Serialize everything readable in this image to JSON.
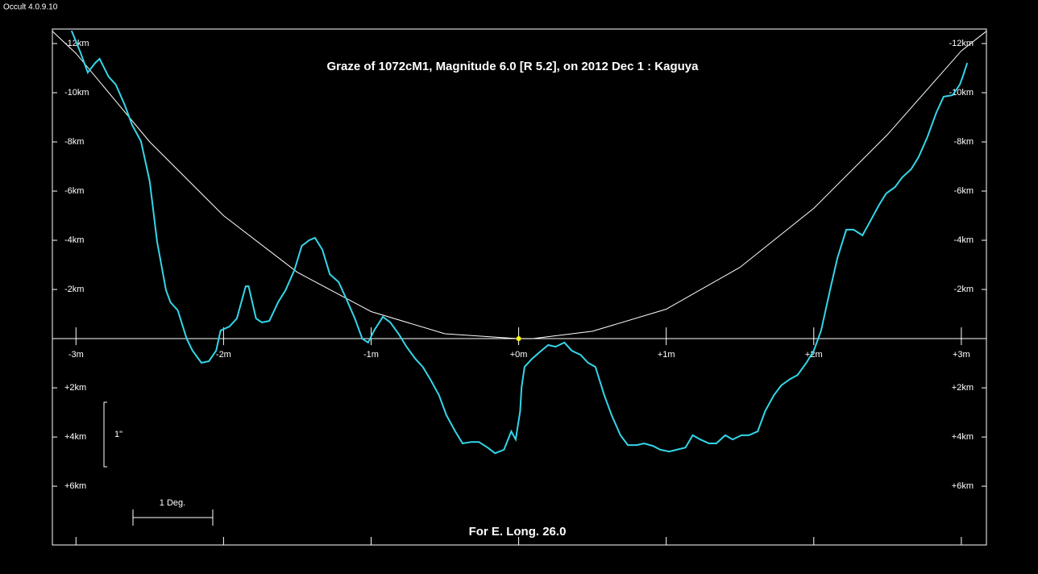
{
  "app_label": "Occult 4.0.9.10",
  "chart_data": {
    "type": "line",
    "title": "Graze of  1072cM1,  Magnitude 6.0 [R 5.2],  on 2012 Dec  1  :  Kaguya",
    "footer": "For E. Long. 26.0",
    "scale_bars": {
      "vertical": "1\"",
      "horizontal": "1 Deg."
    },
    "xlim": [
      -3.16,
      3.17
    ],
    "ylim": [
      -12.59,
      8.39
    ],
    "y_inverted": true,
    "xticks": [
      {
        "value": -3,
        "label": "-3m"
      },
      {
        "value": -2,
        "label": "-2m"
      },
      {
        "value": -1,
        "label": "-1m"
      },
      {
        "value": 0,
        "label": "+0m"
      },
      {
        "value": 1,
        "label": "+1m"
      },
      {
        "value": 2,
        "label": "+2m"
      },
      {
        "value": 3,
        "label": "+3m"
      }
    ],
    "yticks": [
      {
        "value": -12,
        "label": "-12km"
      },
      {
        "value": -10,
        "label": "-10km"
      },
      {
        "value": -8,
        "label": "-8km"
      },
      {
        "value": -6,
        "label": "-6km"
      },
      {
        "value": -4,
        "label": "-4km"
      },
      {
        "value": -2,
        "label": "-2km"
      },
      {
        "value": 2,
        "label": "+2km"
      },
      {
        "value": 4,
        "label": "+4km"
      },
      {
        "value": 6,
        "label": "+6km"
      }
    ],
    "series": [
      {
        "color": "#ffffff",
        "x": [
          -3.16,
          -3.0,
          -2.5,
          -2.0,
          -1.5,
          -1.0,
          -0.5,
          0.0,
          0.09,
          0.5,
          1.0,
          1.5,
          2.0,
          2.5,
          3.0,
          3.17
        ],
        "values": [
          -12.5,
          -11.6,
          -8.0,
          -5.0,
          -2.7,
          -1.1,
          -0.2,
          0,
          0,
          -0.3,
          -1.2,
          -2.9,
          -5.3,
          -8.3,
          -11.7,
          -12.5
        ]
      },
      {
        "color": "#33d6e8",
        "x": [
          -3.03,
          -2.97,
          -2.92,
          -2.87,
          -2.84,
          -2.78,
          -2.73,
          -2.67,
          -2.62,
          -2.56,
          -2.5,
          -2.45,
          -2.39,
          -2.36,
          -2.31,
          -2.25,
          -2.21,
          -2.15,
          -2.1,
          -2.05,
          -2.02,
          -1.96,
          -1.91,
          -1.85,
          -1.83,
          -1.78,
          -1.74,
          -1.69,
          -1.63,
          -1.58,
          -1.52,
          -1.47,
          -1.42,
          -1.38,
          -1.33,
          -1.28,
          -1.22,
          -1.17,
          -1.11,
          -1.06,
          -1.02,
          -0.98,
          -0.92,
          -0.87,
          -0.81,
          -0.76,
          -0.7,
          -0.65,
          -0.6,
          -0.54,
          -0.49,
          -0.43,
          -0.38,
          -0.32,
          -0.27,
          -0.21,
          -0.16,
          -0.1,
          -0.05,
          -0.02,
          0.01,
          0.02,
          0.04,
          0.09,
          0.14,
          0.2,
          0.25,
          0.31,
          0.36,
          0.42,
          0.47,
          0.52,
          0.58,
          0.63,
          0.69,
          0.74,
          0.8,
          0.85,
          0.91,
          0.96,
          1.02,
          1.07,
          1.13,
          1.18,
          1.23,
          1.29,
          1.34,
          1.4,
          1.45,
          1.51,
          1.56,
          1.62,
          1.67,
          1.73,
          1.78,
          1.84,
          1.89,
          1.95,
          2.0,
          2.05,
          2.11,
          2.16,
          2.22,
          2.27,
          2.33,
          2.38,
          2.44,
          2.49,
          2.55,
          2.6,
          2.66,
          2.71,
          2.77,
          2.83,
          2.88,
          2.94,
          2.99,
          3.01,
          3.04
        ],
        "values": [
          -12.52,
          -11.64,
          -10.82,
          -11.21,
          -11.38,
          -10.66,
          -10.33,
          -9.51,
          -8.69,
          -8.03,
          -6.39,
          -3.93,
          -1.97,
          -1.48,
          -1.15,
          0,
          0.49,
          0.98,
          0.92,
          0.49,
          -0.33,
          -0.49,
          -0.82,
          -2.13,
          -2.13,
          -0.82,
          -0.66,
          -0.72,
          -1.48,
          -1.97,
          -2.79,
          -3.77,
          -4.0,
          -4.1,
          -3.61,
          -2.62,
          -2.3,
          -1.64,
          -0.82,
          0,
          0.16,
          -0.33,
          -0.89,
          -0.66,
          -0.16,
          0.33,
          0.82,
          1.15,
          1.64,
          2.3,
          3.11,
          3.77,
          4.26,
          4.2,
          4.2,
          4.43,
          4.66,
          4.52,
          3.77,
          4.1,
          2.95,
          1.97,
          1.15,
          0.82,
          0.56,
          0.26,
          0.33,
          0.16,
          0.49,
          0.66,
          0.98,
          1.15,
          2.3,
          3.11,
          3.93,
          4.33,
          4.33,
          4.26,
          4.36,
          4.52,
          4.59,
          4.52,
          4.43,
          3.93,
          4.1,
          4.26,
          4.26,
          3.93,
          4.1,
          3.93,
          3.93,
          3.77,
          2.95,
          2.3,
          1.9,
          1.64,
          1.48,
          0.98,
          0.49,
          -0.33,
          -1.97,
          -3.28,
          -4.43,
          -4.43,
          -4.2,
          -4.75,
          -5.41,
          -5.9,
          -6.16,
          -6.56,
          -6.89,
          -7.38,
          -8.2,
          -9.18,
          -9.84,
          -9.9,
          -10.33,
          -10.66,
          -11.21
        ]
      }
    ],
    "marker": {
      "x": 0,
      "y": 0,
      "color": "#ffff00"
    }
  }
}
